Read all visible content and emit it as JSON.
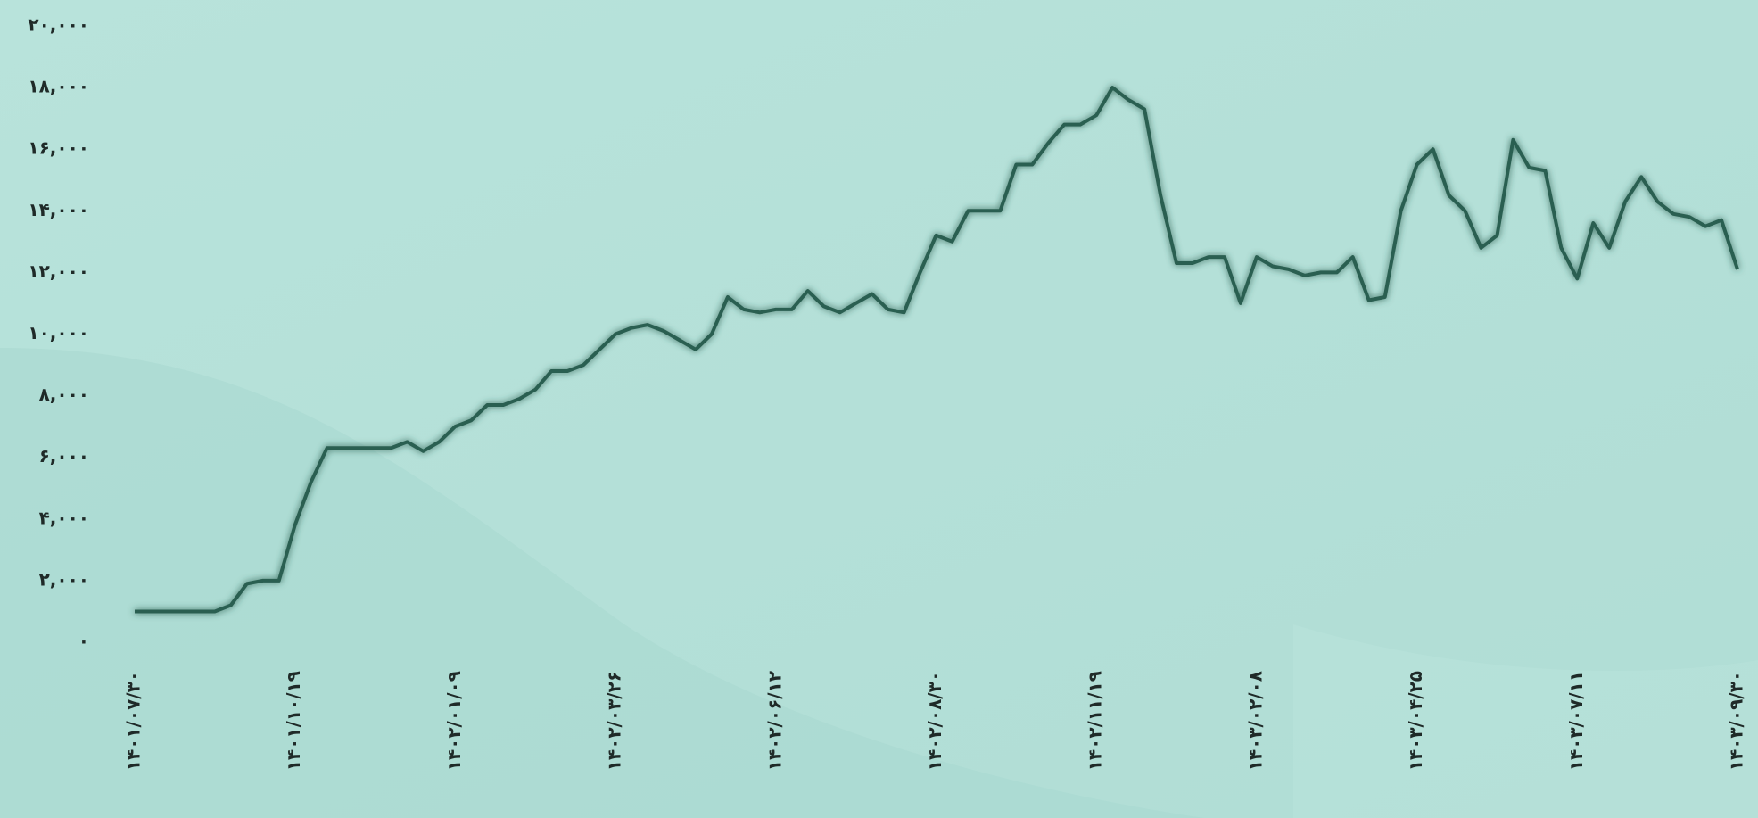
{
  "chart_data": {
    "type": "line",
    "categories": [
      "۱۴۰۱/۰۷/۳۰",
      null,
      null,
      null,
      null,
      null,
      null,
      null,
      null,
      null,
      "۱۴۰۱/۱۰/۱۹",
      null,
      null,
      null,
      null,
      null,
      null,
      null,
      null,
      null,
      "۱۴۰۲/۰۱/۰۹",
      null,
      null,
      null,
      null,
      null,
      null,
      null,
      null,
      null,
      "۱۴۰۲/۰۳/۲۶",
      null,
      null,
      null,
      null,
      null,
      null,
      null,
      null,
      null,
      "۱۴۰۲/۰۶/۱۲",
      null,
      null,
      null,
      null,
      null,
      null,
      null,
      null,
      null,
      "۱۴۰۲/۰۸/۳۰",
      null,
      null,
      null,
      null,
      null,
      null,
      null,
      null,
      null,
      "۱۴۰۲/۱۱/۱۹",
      null,
      null,
      null,
      null,
      null,
      null,
      null,
      null,
      null,
      "۱۴۰۳/۰۲/۰۸",
      null,
      null,
      null,
      null,
      null,
      null,
      null,
      null,
      null,
      "۱۴۰۳/۰۴/۲۵",
      null,
      null,
      null,
      null,
      null,
      null,
      null,
      null,
      null,
      "۱۴۰۳/۰۷/۱۱",
      null,
      null,
      null,
      null,
      null,
      null,
      null,
      null,
      null,
      "۱۴۰۳/۰۹/۳۰"
    ],
    "series": [
      {
        "color": "#2b5f51",
        "values": [
          1000,
          1000,
          1000,
          1000,
          1000,
          1000,
          1200,
          1900,
          2000,
          2000,
          3800,
          5200,
          6300,
          6300,
          6300,
          6300,
          6300,
          6500,
          6200,
          6500,
          7000,
          7200,
          7700,
          7700,
          7900,
          8200,
          8800,
          8800,
          9000,
          9500,
          10000,
          10200,
          10300,
          10100,
          9800,
          9500,
          10000,
          11200,
          10800,
          10700,
          10800,
          10800,
          11400,
          10900,
          10700,
          11000,
          11300,
          10800,
          10700,
          12000,
          13200,
          13000,
          14000,
          14000,
          14000,
          15500,
          15500,
          16200,
          16800,
          16800,
          17100,
          18000,
          17600,
          17300,
          14500,
          12300,
          12300,
          12500,
          12500,
          11000,
          12500,
          12200,
          12100,
          11900,
          12000,
          12000,
          12500,
          11100,
          11200,
          14000,
          15500,
          16000,
          14500,
          14000,
          12800,
          13200,
          16300,
          15400,
          15300,
          12800,
          11800,
          13600,
          12800,
          14300,
          15100,
          14300,
          13900,
          13800,
          13500,
          13700,
          12100
        ]
      }
    ],
    "ylim": [
      0,
      20000
    ],
    "yticks": [
      {
        "value": 0,
        "label": "۰"
      },
      {
        "value": 2000,
        "label": "۲,۰۰۰"
      },
      {
        "value": 4000,
        "label": "۴,۰۰۰"
      },
      {
        "value": 6000,
        "label": "۶,۰۰۰"
      },
      {
        "value": 8000,
        "label": "۸,۰۰۰"
      },
      {
        "value": 10000,
        "label": "۱۰,۰۰۰"
      },
      {
        "value": 12000,
        "label": "۱۲,۰۰۰"
      },
      {
        "value": 14000,
        "label": "۱۴,۰۰۰"
      },
      {
        "value": 16000,
        "label": "۱۶,۰۰۰"
      },
      {
        "value": 18000,
        "label": "۱۸,۰۰۰"
      },
      {
        "value": 20000,
        "label": "۲۰,۰۰۰"
      }
    ]
  }
}
